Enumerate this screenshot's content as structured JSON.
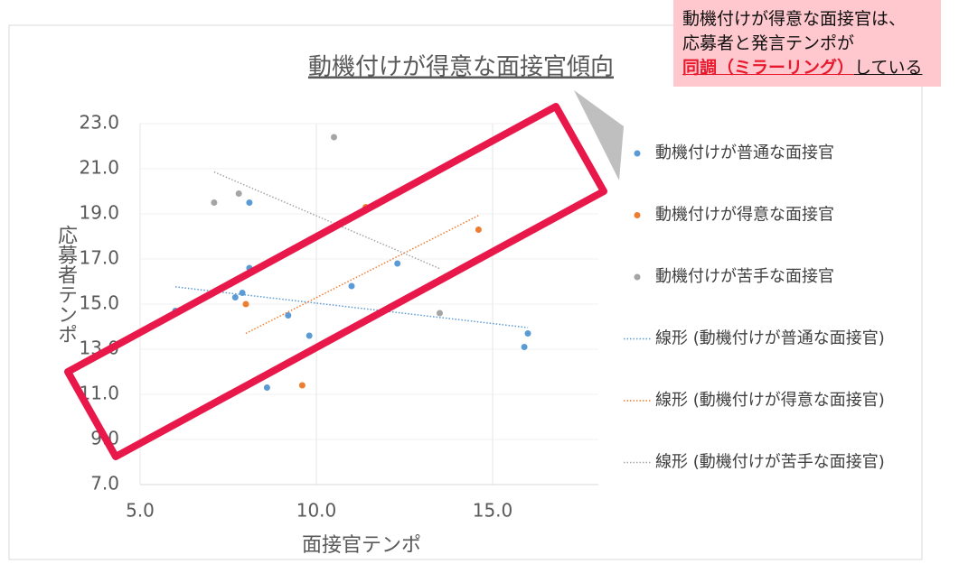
{
  "chart_data": {
    "type": "scatter",
    "title": "動機付けが得意な面接官傾向",
    "x_label": "面接官テンポ",
    "y_label": "応募者テンポ",
    "xlim": [
      5,
      18
    ],
    "xticks": [
      {
        "value": 5,
        "label": "5.0"
      },
      {
        "value": 10,
        "label": "10.0"
      },
      {
        "value": 15,
        "label": "15.0"
      }
    ],
    "ylim": [
      7,
      23
    ],
    "yticks": [
      {
        "value": 7,
        "label": "7.0"
      },
      {
        "value": 9,
        "label": "9.0"
      },
      {
        "value": 11,
        "label": "11.0"
      },
      {
        "value": 13,
        "label": "13.0"
      },
      {
        "value": 15,
        "label": "15.0"
      },
      {
        "value": 17,
        "label": "17.0"
      },
      {
        "value": 19,
        "label": "19.0"
      },
      {
        "value": 21,
        "label": "21.0"
      },
      {
        "value": 23,
        "label": "23.0"
      }
    ],
    "grid": true,
    "legend": "right",
    "series": [
      {
        "name": "動機付けが普通な面接官",
        "trendline_name": "線形 (動機付けが普通な面接官)",
        "color": "#5b9bd5",
        "x": [
          6.0,
          7.7,
          7.9,
          8.1,
          8.1,
          8.6,
          9.2,
          9.8,
          11.0,
          12.3,
          15.9,
          16.0
        ],
        "values": [
          14.7,
          15.3,
          15.5,
          16.6,
          19.5,
          11.3,
          14.5,
          13.6,
          15.8,
          16.8,
          13.1,
          13.7
        ]
      },
      {
        "name": "動機付けが得意な面接官",
        "trendline_name": "線形 (動機付けが得意な面接官)",
        "color": "#ed7d31",
        "x": [
          8.0,
          9.6,
          11.4,
          14.6
        ],
        "values": [
          15.0,
          11.4,
          19.3,
          18.3
        ]
      },
      {
        "name": "動機付けが苦手な面接官",
        "trendline_name": "線形 (動機付けが苦手な面接官)",
        "color": "#a5a5a5",
        "x": [
          7.1,
          7.8,
          10.5,
          13.5
        ],
        "values": [
          19.5,
          19.9,
          22.4,
          14.6
        ]
      }
    ]
  },
  "callout": {
    "lines": [
      "動機付けが得意な面接官は、",
      "応募者と発言テンポが"
    ],
    "highlight": "同調（ミラーリング）",
    "rest": "している"
  }
}
